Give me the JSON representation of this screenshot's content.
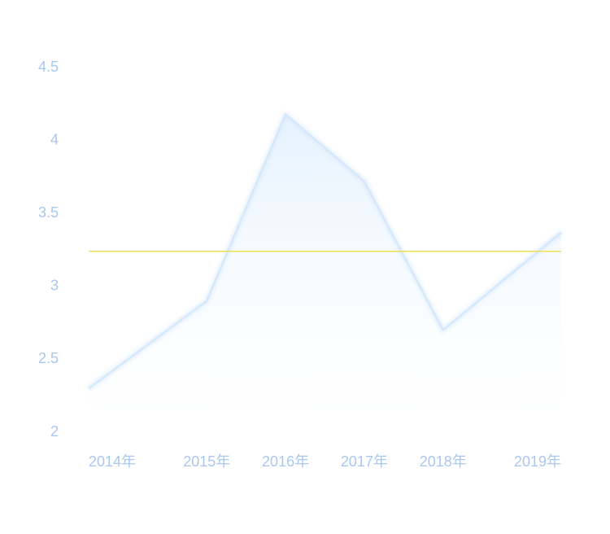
{
  "chart_data": {
    "type": "area",
    "categories": [
      "2014年",
      "2015年",
      "2016年",
      "2017年",
      "2018年",
      "2019年"
    ],
    "x": [
      2014,
      2015.2,
      2016,
      2016.8,
      2017.6,
      2018.8
    ],
    "series": [
      {
        "values": [
          2.3,
          2.9,
          4.18,
          3.72,
          2.7,
          3.37
        ]
      }
    ],
    "reference_line": {
      "value": 3.24
    },
    "yticks": [
      "2",
      "2.5",
      "3",
      "3.5",
      "4",
      "4.5"
    ],
    "ytick_values": [
      2,
      2.5,
      3,
      3.5,
      4,
      4.5
    ],
    "ylim": [
      2,
      4.5
    ],
    "xlim": [
      2014,
      2018.8
    ],
    "title": "",
    "xlabel": "",
    "ylabel": "",
    "grid": false,
    "legend": "none",
    "colors": {
      "line": "#d6e8fb",
      "fill_top": "#e3f1fd",
      "fill_bottom": "#ffffff",
      "reference": "#f2dc52",
      "tick_text": "#a9c8ef"
    }
  }
}
